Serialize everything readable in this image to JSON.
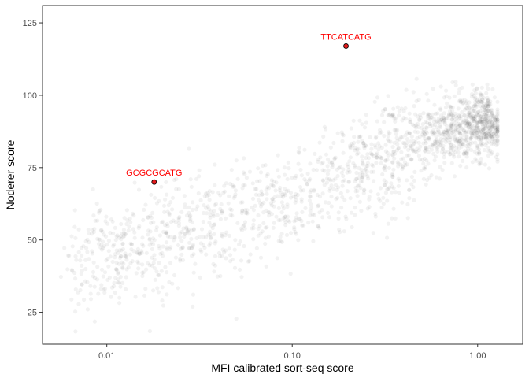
{
  "chart_data": {
    "type": "scatter",
    "title": "",
    "xlabel": "MFI calibrated sort-seq score",
    "ylabel": "Noderer score",
    "x_scale": "log10",
    "xlim": [
      0.0045,
      1.75
    ],
    "ylim": [
      14,
      131
    ],
    "x_ticks": [
      {
        "value": 0.01,
        "label": "0.01"
      },
      {
        "value": 0.1,
        "label": "0.10"
      },
      {
        "value": 1,
        "label": "1.00"
      }
    ],
    "y_ticks": [
      {
        "value": 25,
        "label": "25"
      },
      {
        "value": 50,
        "label": "50"
      },
      {
        "value": 75,
        "label": "75"
      },
      {
        "value": 100,
        "label": "100"
      },
      {
        "value": 125,
        "label": "125"
      }
    ],
    "grid": false,
    "legend": "none",
    "background_points": {
      "description_color": "#000000",
      "alpha": 0.05,
      "series": [
        {
          "x": [
            0.007,
            0.008,
            0.009,
            0.01,
            0.011,
            0.012,
            0.013,
            0.015,
            0.017,
            0.019,
            0.021,
            0.023,
            0.026,
            0.029,
            0.033,
            0.037,
            0.042,
            0.047,
            0.053,
            0.06,
            0.068,
            0.077,
            0.087,
            0.1,
            0.11,
            0.125,
            0.14,
            0.16,
            0.18,
            0.2,
            0.23,
            0.26,
            0.3,
            0.34,
            0.38,
            0.43,
            0.48,
            0.54,
            0.6,
            0.67,
            0.74,
            0.8,
            0.86,
            0.92,
            0.98,
            1.03,
            1.08,
            1.12,
            1.17,
            1.22
          ],
          "y": [
            42,
            40,
            45,
            43,
            47,
            45,
            49,
            47,
            50,
            49,
            51,
            50,
            53,
            52,
            55,
            54,
            57,
            56,
            59,
            58,
            61,
            60,
            63,
            64,
            65,
            67,
            68,
            70,
            71,
            73,
            74,
            76,
            78,
            79,
            81,
            82,
            84,
            85,
            86,
            87,
            88,
            89,
            89,
            90,
            90,
            91,
            91,
            90,
            90,
            89
          ]
        }
      ]
    },
    "highlighted_points": [
      {
        "x": 0.018,
        "y": 70,
        "label": "GCGCGCATG"
      },
      {
        "x": 0.195,
        "y": 117,
        "label": "TTCATCATG"
      }
    ],
    "colors": {
      "highlight_fill": "#e31a1c",
      "highlight_stroke": "#000000",
      "annotation_text": "#ff0000",
      "background_point": "#000000",
      "axis_line": "#333333"
    }
  }
}
